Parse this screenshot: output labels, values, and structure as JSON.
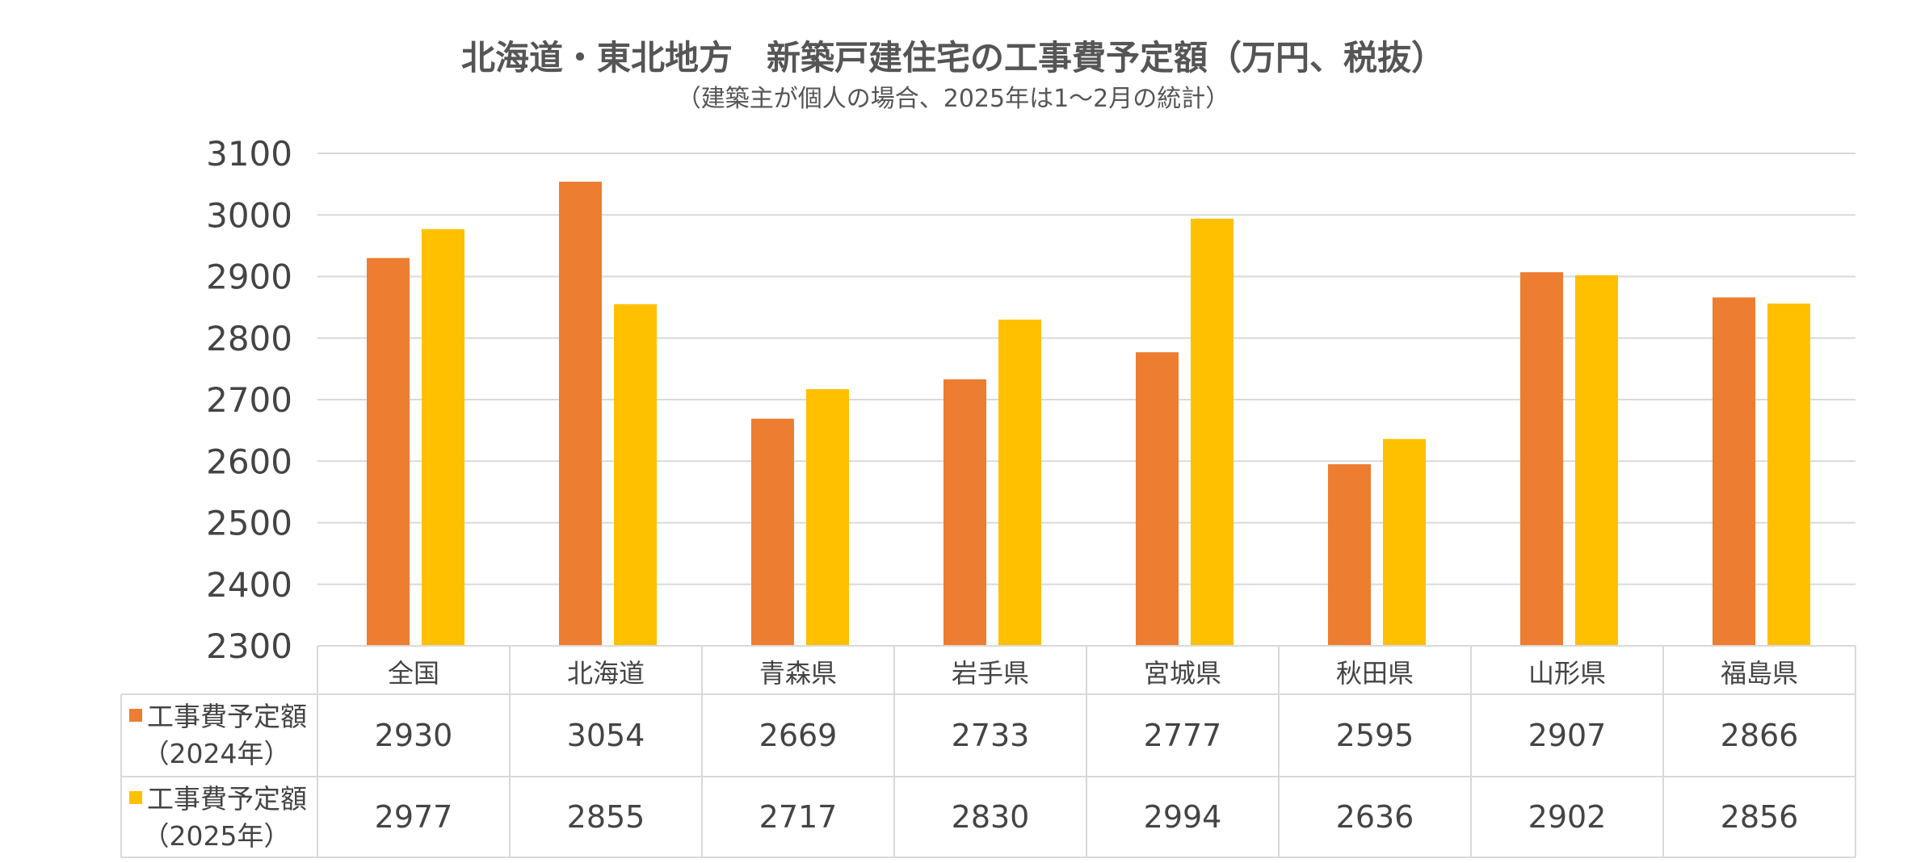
{
  "chart_data": {
    "type": "bar",
    "title": "北海道・東北地方　新築戸建住宅の工事費予定額（万円、税抜）",
    "subtitle": "（建築主が個人の場合、2025年は1～2月の統計）",
    "categories": [
      "全国",
      "北海道",
      "青森県",
      "岩手県",
      "宮城県",
      "秋田県",
      "山形県",
      "福島県"
    ],
    "series": [
      {
        "name": "工事費予定額（2024年）",
        "name_line1": "工事費予定額",
        "name_line2": "（2024年）",
        "color": "#ED7D31",
        "values": [
          2930,
          3054,
          2669,
          2733,
          2777,
          2595,
          2907,
          2866
        ]
      },
      {
        "name": "工事費予定額（2025年）",
        "name_line1": "工事費予定額",
        "name_line2": "（2025年）",
        "color": "#FFC000",
        "values": [
          2977,
          2855,
          2717,
          2830,
          2994,
          2636,
          2902,
          2856
        ]
      }
    ],
    "ylim": [
      2300,
      3100
    ],
    "yticks": [
      3100,
      3000,
      2900,
      2800,
      2700,
      2600,
      2500,
      2400,
      2300
    ],
    "grid": true,
    "legend": "data-table"
  }
}
